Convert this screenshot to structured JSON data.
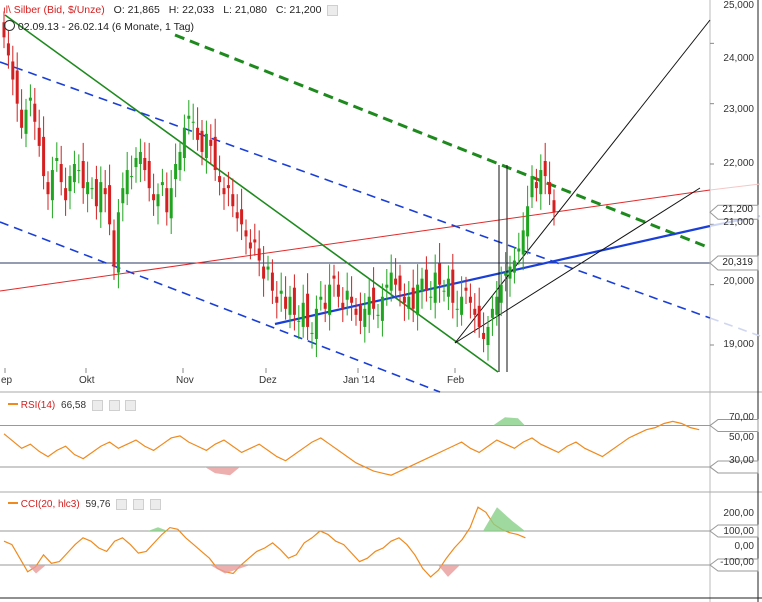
{
  "header": {
    "instrument": "Silber (Bid, $/Unze)",
    "open": "O: 21,865",
    "high": "H: 22,033",
    "low": "L: 21,080",
    "close": "C: 21,200",
    "range": "02.09.13 - 26.02.14 (6 Monate, 1 Tag)"
  },
  "price_axis": {
    "ticks": [
      "25,000",
      "24,000",
      "23,000",
      "22,000",
      "21,000",
      "20,000",
      "19,000"
    ],
    "last_price_tag": "21,200",
    "hline_tag": "20,319"
  },
  "time_axis": {
    "labels": [
      "ep",
      "Okt",
      "Nov",
      "Dez",
      "Jan '14",
      "Feb"
    ]
  },
  "rsi": {
    "label": "RSI(14)",
    "value": "66,58",
    "ticks": [
      "70,00",
      "50,00",
      "30,00"
    ]
  },
  "cci": {
    "label": "CCI(20, hlc3)",
    "value": "59,76",
    "ticks": [
      "200,00",
      "100,00",
      "0,00",
      "-100,00"
    ]
  },
  "colors": {
    "up": "#1fa51f",
    "down": "#d42020",
    "indicator": "#f08a1e",
    "fill_overbought": "#88d088",
    "fill_oversold": "#e89a9a",
    "trend_green": "#1e8a1e",
    "trend_blue": "#1a3fd6",
    "trend_red": "#e02a2a"
  },
  "chart_data": {
    "type": "candlestick",
    "title": "Silber (Bid, $/Unze)",
    "xlabel": "",
    "ylabel": "",
    "ylim": [
      18.5,
      25.0
    ],
    "period": "02.09.13 - 26.02.14",
    "interval": "1 Tag",
    "last_ohlc": {
      "open": 21.865,
      "high": 22.033,
      "low": 21.08,
      "close": 21.2
    },
    "horizontal_line": 20.319,
    "series": [
      {
        "name": "Silber",
        "close_estimates": [
          {
            "x": "Sep",
            "y": 23.4
          },
          {
            "x": "Okt",
            "y": 21.7
          },
          {
            "x": "Nov",
            "y": 21.6
          },
          {
            "x": "Dez",
            "y": 19.6
          },
          {
            "x": "Jan '14",
            "y": 19.9
          },
          {
            "x": "Feb",
            "y": 19.3
          },
          {
            "x": "26.02.14",
            "y": 21.2
          }
        ]
      }
    ],
    "rsi_14": {
      "last": 66.58,
      "levels": [
        70,
        30
      ]
    },
    "cci_20": {
      "last": 59.76,
      "levels": [
        100,
        -100
      ]
    }
  }
}
